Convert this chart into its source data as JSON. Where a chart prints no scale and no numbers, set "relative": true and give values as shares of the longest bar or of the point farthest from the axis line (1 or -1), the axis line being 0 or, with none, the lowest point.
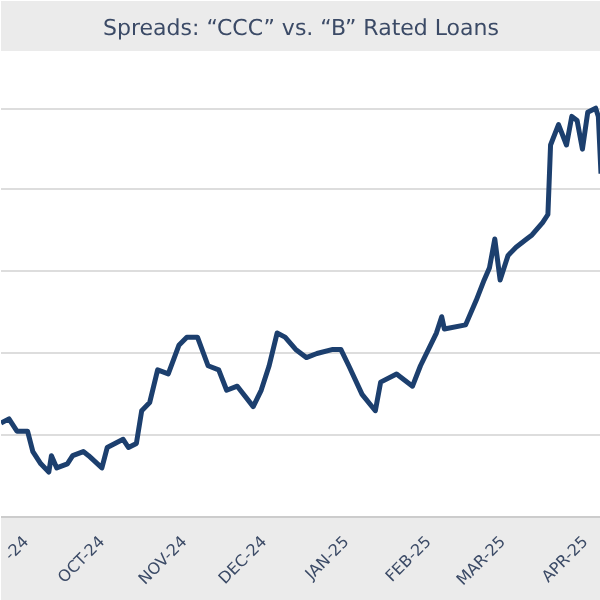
{
  "chart_data": {
    "type": "line",
    "title": "Spreads: “CCC” vs. “B” Rated Loans",
    "relative": true,
    "grid": "y",
    "xlim": [
      "2024-08-24",
      "2025-04-07"
    ],
    "xticks": [
      {
        "value": "2024-09-01",
        "label": "-24"
      },
      {
        "value": "2024-10-01",
        "label": "OCT-24"
      },
      {
        "value": "2024-11-01",
        "label": "NOV-24"
      },
      {
        "value": "2024-12-01",
        "label": "DEC-24"
      },
      {
        "value": "2025-01-01",
        "label": "JAN-25"
      },
      {
        "value": "2025-02-01",
        "label": "FEB-25"
      },
      {
        "value": "2025-03-01",
        "label": "MAR-25"
      },
      {
        "value": "2025-04-01",
        "label": "APR-25"
      }
    ],
    "x": [
      "2024-08-24",
      "2024-08-27",
      "2024-08-30",
      "2024-09-03",
      "2024-09-05",
      "2024-09-08",
      "2024-09-11",
      "2024-09-12",
      "2024-09-14",
      "2024-09-18",
      "2024-09-20",
      "2024-09-24",
      "2024-09-26",
      "2024-10-01",
      "2024-10-03",
      "2024-10-09",
      "2024-10-11",
      "2024-10-14",
      "2024-10-16",
      "2024-10-19",
      "2024-10-22",
      "2024-10-26",
      "2024-10-30",
      "2024-11-02",
      "2024-11-06",
      "2024-11-10",
      "2024-11-14",
      "2024-11-17",
      "2024-11-21",
      "2024-11-27",
      "2024-11-30",
      "2024-12-03",
      "2024-12-06",
      "2024-12-09",
      "2024-12-13",
      "2024-12-17",
      "2024-12-21",
      "2024-12-27",
      "2024-12-30",
      "2025-01-02",
      "2025-01-07",
      "2025-01-12",
      "2025-01-14",
      "2025-01-20",
      "2025-01-26",
      "2025-01-29",
      "2025-02-04",
      "2025-02-06",
      "2025-02-07",
      "2025-02-15",
      "2025-02-19",
      "2025-02-22",
      "2025-02-24",
      "2025-02-26",
      "2025-02-28",
      "2025-03-03",
      "2025-03-06",
      "2025-03-10",
      "2025-03-12",
      "2025-03-16",
      "2025-03-18",
      "2025-03-19",
      "2025-03-22",
      "2025-03-25",
      "2025-03-27",
      "2025-03-29",
      "2025-03-31",
      "2025-04-02",
      "2025-04-05",
      "2025-04-06",
      "2025-04-07"
    ],
    "series": [
      {
        "color": "#1c3f6e",
        "values": [
          0.23,
          0.24,
          0.21,
          0.21,
          0.16,
          0.13,
          0.11,
          0.15,
          0.12,
          0.13,
          0.15,
          0.16,
          0.15,
          0.12,
          0.17,
          0.19,
          0.17,
          0.18,
          0.26,
          0.28,
          0.36,
          0.35,
          0.42,
          0.44,
          0.44,
          0.37,
          0.36,
          0.31,
          0.32,
          0.27,
          0.31,
          0.37,
          0.45,
          0.44,
          0.41,
          0.39,
          0.4,
          0.41,
          0.41,
          0.37,
          0.3,
          0.26,
          0.33,
          0.35,
          0.32,
          0.37,
          0.45,
          0.49,
          0.46,
          0.47,
          0.53,
          0.58,
          0.61,
          0.68,
          0.58,
          0.64,
          0.66,
          0.68,
          0.69,
          0.72,
          0.74,
          0.91,
          0.96,
          0.91,
          0.98,
          0.97,
          0.9,
          0.99,
          1,
          0.98,
          0.84
        ]
      }
    ]
  }
}
